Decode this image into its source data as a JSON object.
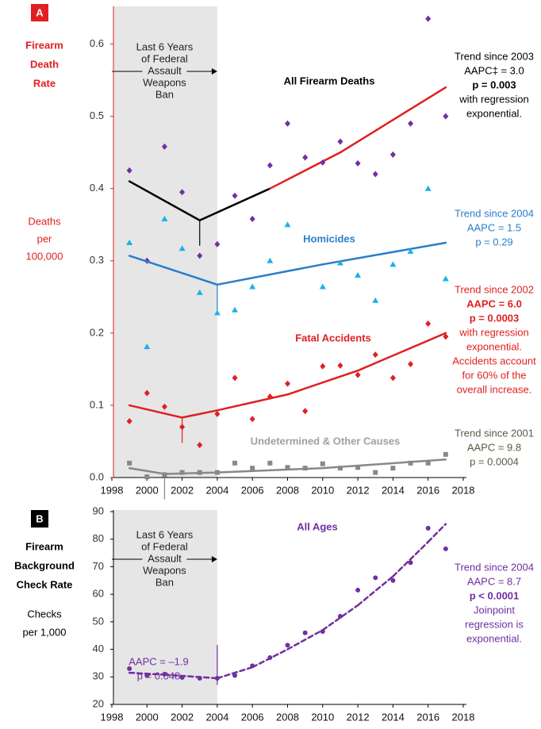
{
  "chart_data": [
    {
      "type": "scatter",
      "panel": "A",
      "panel_color": "#e02020",
      "y_title": [
        "Firearm",
        "Death",
        "Rate"
      ],
      "y_title_color": "#e02020",
      "y_unit": [
        "Deaths",
        "per",
        "100,000"
      ],
      "y_unit_color": "#e02020",
      "shaded_range": [
        1998,
        2004
      ],
      "shade_text": [
        "Last 6 Years",
        "of Federal",
        "Assault",
        "Weapons",
        "Ban"
      ],
      "xlim": [
        1998,
        2018
      ],
      "xticks": [
        1998,
        2000,
        2002,
        2004,
        2006,
        2008,
        2010,
        2012,
        2014,
        2016,
        2018
      ],
      "ylim": [
        0,
        0.65
      ],
      "yticks": [
        {
          "value": 0,
          "label": "0.0"
        },
        0.1,
        0.2,
        0.3,
        0.4,
        0.5,
        0.6
      ],
      "axis_color": "#e02020",
      "x": [
        1999,
        2000,
        2001,
        2002,
        2003,
        2004,
        2005,
        2006,
        2007,
        2008,
        2009,
        2010,
        2011,
        2012,
        2013,
        2014,
        2015,
        2016,
        2017
      ],
      "series": [
        {
          "name": "All Firearm Deaths",
          "color": "#7030a0",
          "label_color": "#000000",
          "marker": "diamond",
          "values": [
            0.425,
            0.3,
            0.458,
            0.395,
            0.307,
            0.323,
            0.39,
            0.358,
            0.432,
            0.49,
            0.443,
            0.436,
            0.465,
            0.435,
            0.42,
            0.447,
            0.49,
            0.635,
            0.5
          ],
          "trend": {
            "x": [
              1999,
              2003,
              2007,
              2011,
              2014,
              2017
            ],
            "values": [
              0.41,
              0.356,
              0.4,
              0.45,
              0.495,
              0.54
            ],
            "colors": [
              "#000000",
              "#000000",
              "#e02020",
              "#e02020",
              "#e02020"
            ],
            "joinpoint": 2003
          }
        },
        {
          "name": "Homicides",
          "color": "#1ab2e8",
          "label_color": "#2a7ec8",
          "marker": "triangle",
          "values": [
            0.325,
            0.181,
            0.358,
            0.317,
            0.256,
            0.228,
            0.232,
            0.264,
            0.3,
            0.35,
            null,
            0.264,
            0.297,
            0.28,
            0.245,
            0.295,
            0.313,
            0.4,
            0.275
          ],
          "trend": {
            "x": [
              1999,
              2004,
              2010,
              2017
            ],
            "values": [
              0.307,
              0.267,
              0.295,
              0.325
            ],
            "colors": [
              "#2a7ec8",
              "#2a7ec8",
              "#2a7ec8"
            ],
            "joinpoint": 2004
          }
        },
        {
          "name": "Fatal Accidents",
          "color": "#e02020",
          "label_color": "#e02020",
          "marker": "diamond",
          "values": [
            0.078,
            0.117,
            0.098,
            0.07,
            0.045,
            0.088,
            0.138,
            0.081,
            0.112,
            0.13,
            0.092,
            0.154,
            0.155,
            0.142,
            0.17,
            0.138,
            0.157,
            0.213,
            0.195
          ],
          "trend": {
            "x": [
              1999,
              2002,
              2004,
              2008,
              2012,
              2017
            ],
            "values": [
              0.1,
              0.083,
              0.093,
              0.115,
              0.148,
              0.2
            ],
            "colors": [
              "#e02020",
              "#e02020",
              "#e02020",
              "#e02020",
              "#e02020"
            ],
            "joinpoint": 2002
          }
        },
        {
          "name": "Undetermined & Other Causes",
          "color": "#888888",
          "label_color": "#a0a0a0",
          "marker": "square",
          "values": [
            0.02,
            0.001,
            0.004,
            0.007,
            0.007,
            0.007,
            0.02,
            0.013,
            0.02,
            0.014,
            0.013,
            0.019,
            0.013,
            0.014,
            0.007,
            0.013,
            0.02,
            0.02,
            0.032
          ],
          "trend": {
            "x": [
              1999,
              2001,
              2004,
              2010,
              2017
            ],
            "values": [
              0.013,
              0.005,
              0.007,
              0.013,
              0.025
            ],
            "colors": [
              "#888888",
              "#888888",
              "#888888",
              "#888888"
            ],
            "joinpoint": 2001
          }
        }
      ],
      "annotations": [
        {
          "color": "#000000",
          "lines": [
            "Trend since 2003",
            "AAPC‡ = 3.0",
            {
              "text": "p = 0.003",
              "bold": true
            },
            "with regression",
            "exponential."
          ]
        },
        {
          "color": "#2a7ec8",
          "lines": [
            "Trend since 2004",
            "AAPC = 1.5",
            "p = 0.29"
          ]
        },
        {
          "color": "#e02020",
          "lines": [
            "Trend since 2002",
            {
              "text": "AAPC = 6.0",
              "bold": true
            },
            {
              "text": "p = 0.0003",
              "bold": true
            },
            "with regression",
            "exponential.",
            "Accidents account",
            "for 60% of the",
            "overall increase."
          ]
        },
        {
          "color": "#5a5a48",
          "lines": [
            "Trend since 2001",
            "AAPC = 9.8",
            "p = 0.0004"
          ]
        }
      ]
    },
    {
      "type": "scatter",
      "panel": "B",
      "panel_color": "#000000",
      "y_title": [
        "Firearm",
        "Background",
        "Check Rate"
      ],
      "y_title_color": "#000000",
      "y_unit": [
        "Checks",
        "per 1,000"
      ],
      "y_unit_color": "#000000",
      "shaded_range": [
        1998,
        2004
      ],
      "shade_text": [
        "Last 6 Years",
        "of Federal",
        "Assault",
        "Weapons",
        "Ban"
      ],
      "xlim": [
        1998,
        2018
      ],
      "xticks": [
        1998,
        2000,
        2002,
        2004,
        2006,
        2008,
        2010,
        2012,
        2014,
        2016,
        2018
      ],
      "ylim": [
        20,
        90
      ],
      "yticks": [
        20,
        30,
        40,
        50,
        60,
        70,
        80,
        90
      ],
      "axis_color": "#000000",
      "x": [
        1999,
        2000,
        2001,
        2002,
        2003,
        2004,
        2005,
        2006,
        2007,
        2008,
        2009,
        2010,
        2011,
        2012,
        2013,
        2014,
        2015,
        2016,
        2017
      ],
      "series": [
        {
          "name": "All Ages",
          "color": "#7030a0",
          "label_color": "#7030a0",
          "marker": "circle",
          "dashed": true,
          "values": [
            33,
            30.5,
            31,
            29.8,
            29.5,
            29.5,
            30.5,
            34,
            37,
            41.5,
            46,
            46.5,
            52,
            61.5,
            66,
            65,
            71.5,
            84,
            76.5
          ],
          "trend": {
            "x": [
              1999,
              2001,
              2004,
              2006,
              2008,
              2010,
              2012,
              2014,
              2016,
              2017
            ],
            "values": [
              31.5,
              30.8,
              29.5,
              33.5,
              40,
              47,
              56,
              66.5,
              79,
              85.5
            ],
            "colors": [
              "#7030a0",
              "#7030a0",
              "#7030a0",
              "#7030a0",
              "#7030a0",
              "#7030a0",
              "#7030a0",
              "#7030a0",
              "#7030a0"
            ],
            "joinpoint": 2004
          }
        }
      ],
      "annotations": [
        {
          "color": "#7030a0",
          "lines": [
            "Trend since 2004",
            "AAPC = 8.7",
            {
              "text": "p < 0.0001",
              "bold": true
            },
            "Joinpoint",
            "regression is",
            "exponential."
          ]
        },
        {
          "color": "#7030a0",
          "lines": [
            "AAPC = –1.9",
            "p = 0.048"
          ]
        }
      ]
    }
  ]
}
